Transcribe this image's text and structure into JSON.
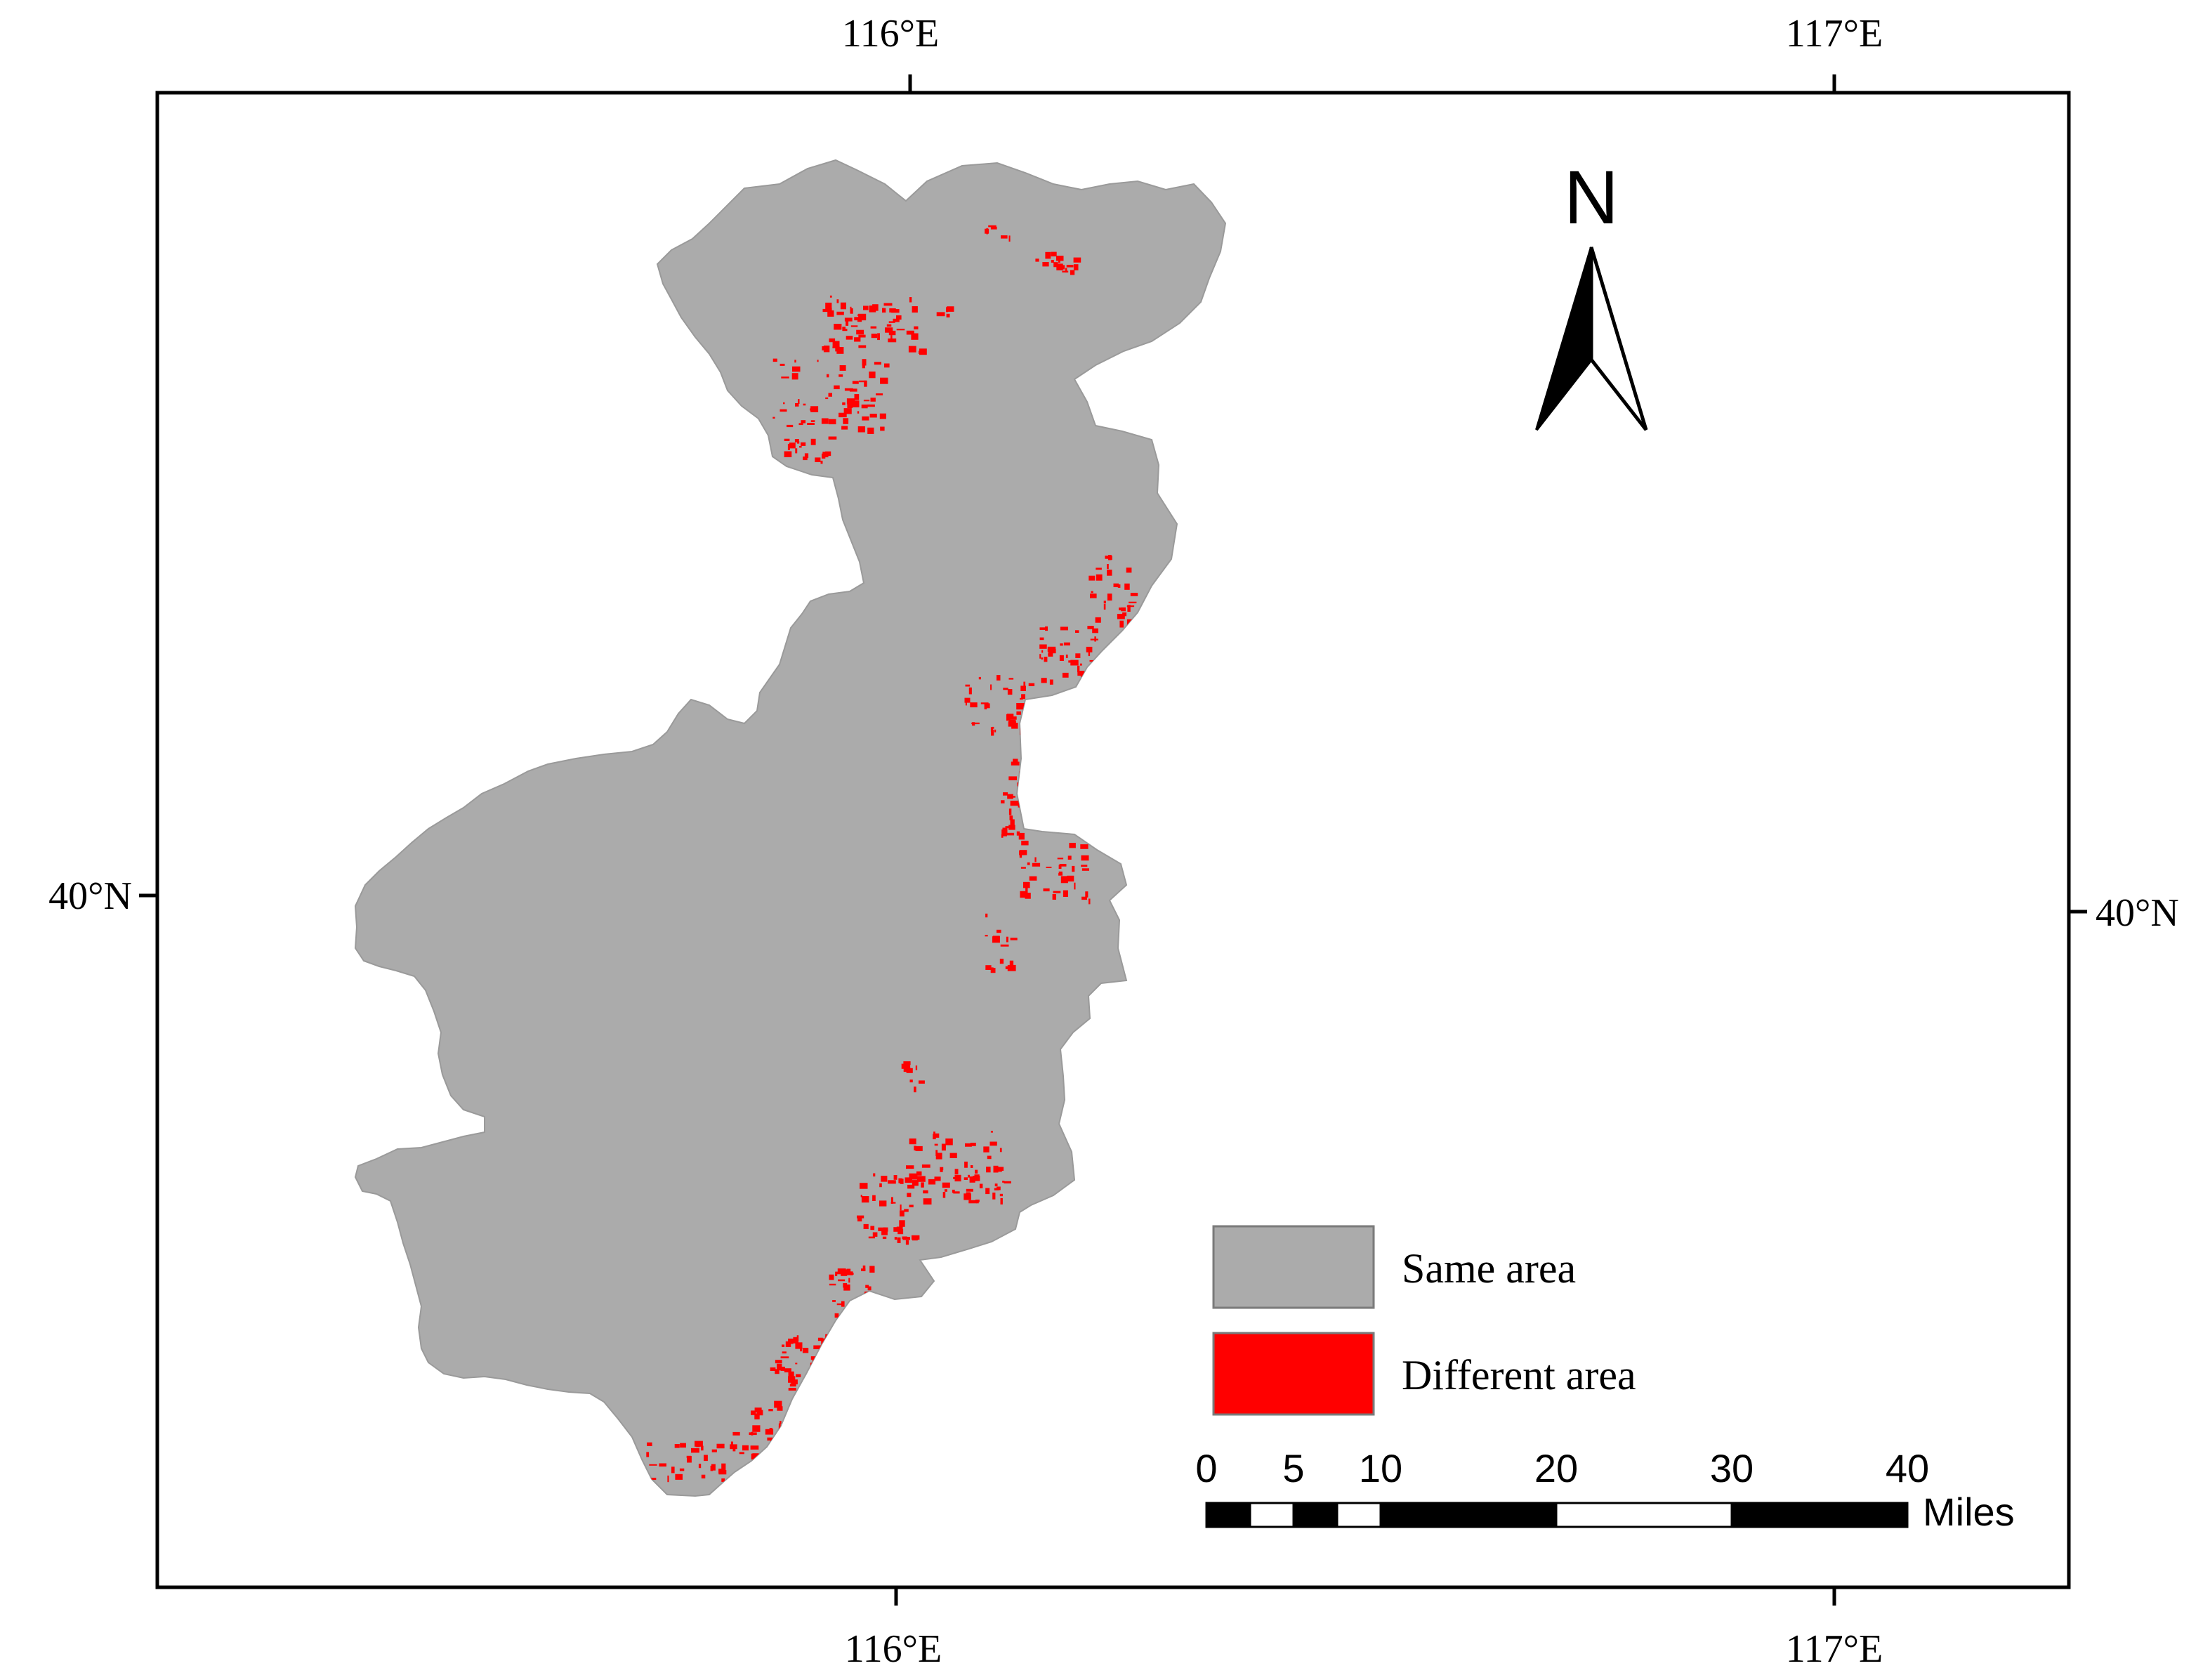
{
  "map": {
    "graticule": {
      "top": [
        "116°E",
        "117°E"
      ],
      "bottom": [
        "116°E",
        "117°E"
      ],
      "left": [
        "40°N"
      ],
      "right": [
        "40°N"
      ]
    },
    "north_arrow": {
      "label": "N"
    },
    "legend": {
      "items": [
        {
          "label": "Same area",
          "color": "#ababab"
        },
        {
          "label": "Different area",
          "color": "#ff0000"
        }
      ]
    },
    "scale_bar": {
      "tick_labels": [
        "0",
        "5",
        "10",
        "20",
        "30",
        "40"
      ],
      "unit": "Miles"
    },
    "colors": {
      "same_area": "#ababab",
      "different_area": "#ff0000",
      "frame": "#000000"
    }
  }
}
